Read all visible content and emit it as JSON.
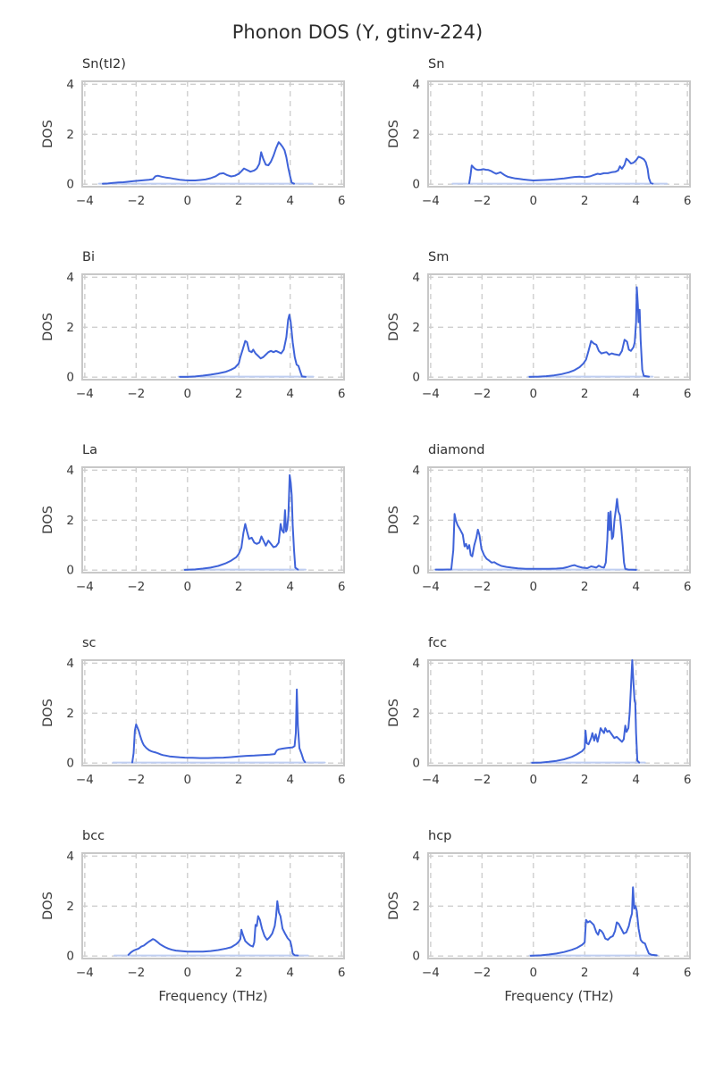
{
  "figure": {
    "title": "Phonon DOS (Y, gtinv-224)"
  },
  "style": {
    "line_color": "#3F63D9",
    "tail_color": "#BFCEF1",
    "grid_color": "#CFCFCF",
    "border_color": "#C8C8C8",
    "text_color": "#3A3A3A",
    "title_color": "#2B2B2B"
  },
  "axes": {
    "xlabel": "Frequency (THz)",
    "ylabel": "DOS",
    "xlim": [
      -4.1,
      6.1
    ],
    "ylim": [
      -0.1,
      4.12
    ],
    "xticks": [
      -4,
      -2,
      0,
      2,
      4,
      6
    ],
    "yticks": [
      0,
      2,
      4
    ],
    "grid": "dashed"
  },
  "chart_data": [
    {
      "type": "line",
      "title": "Sn(tI2)",
      "xlabel": "",
      "ylabel": "DOS",
      "xlim": [
        -4.1,
        6.1
      ],
      "ylim": [
        -0.1,
        4.12
      ],
      "xticks": [
        -4,
        -2,
        0,
        2,
        4,
        6
      ],
      "yticks": [
        0,
        2,
        4
      ],
      "tail": [
        -3.45,
        4.85
      ],
      "x": [
        -3.3,
        -3.1,
        -2.9,
        -2.7,
        -2.5,
        -2.3,
        -2.1,
        -1.9,
        -1.7,
        -1.5,
        -1.35,
        -1.25,
        -1.15,
        -1.0,
        -0.85,
        -0.7,
        -0.5,
        -0.3,
        -0.1,
        0.1,
        0.3,
        0.5,
        0.7,
        0.9,
        1.1,
        1.25,
        1.4,
        1.55,
        1.7,
        1.85,
        2.0,
        2.1,
        2.2,
        2.3,
        2.45,
        2.6,
        2.7,
        2.8,
        2.87,
        2.95,
        3.05,
        3.15,
        3.25,
        3.35,
        3.45,
        3.55,
        3.63,
        3.7,
        3.78,
        3.85,
        3.92,
        4.0,
        4.06,
        4.15
      ],
      "y": [
        0.02,
        0.03,
        0.05,
        0.07,
        0.08,
        0.1,
        0.12,
        0.14,
        0.16,
        0.18,
        0.2,
        0.32,
        0.34,
        0.3,
        0.27,
        0.25,
        0.21,
        0.18,
        0.16,
        0.15,
        0.15,
        0.17,
        0.19,
        0.24,
        0.32,
        0.42,
        0.44,
        0.36,
        0.31,
        0.34,
        0.42,
        0.52,
        0.63,
        0.58,
        0.5,
        0.55,
        0.63,
        0.82,
        1.28,
        1.02,
        0.78,
        0.76,
        0.9,
        1.14,
        1.44,
        1.68,
        1.6,
        1.5,
        1.36,
        1.08,
        0.68,
        0.3,
        0.06,
        0.02
      ]
    },
    {
      "type": "line",
      "title": "Sn",
      "xlabel": "",
      "ylabel": "DOS",
      "xlim": [
        -4.1,
        6.1
      ],
      "ylim": [
        -0.1,
        4.12
      ],
      "xticks": [
        -4,
        -2,
        0,
        2,
        4,
        6
      ],
      "yticks": [
        0,
        2,
        4
      ],
      "tail": [
        -3.15,
        5.2
      ],
      "x": [
        -2.5,
        -2.45,
        -2.4,
        -2.32,
        -2.25,
        -2.15,
        -2.05,
        -1.95,
        -1.85,
        -1.75,
        -1.65,
        -1.55,
        -1.45,
        -1.35,
        -1.28,
        -1.2,
        -1.1,
        -1.0,
        -0.85,
        -0.7,
        -0.55,
        -0.4,
        -0.2,
        0.0,
        0.2,
        0.4,
        0.6,
        0.8,
        1.0,
        1.2,
        1.4,
        1.6,
        1.8,
        2.0,
        2.2,
        2.35,
        2.5,
        2.6,
        2.75,
        2.9,
        3.05,
        3.2,
        3.3,
        3.37,
        3.45,
        3.55,
        3.62,
        3.7,
        3.8,
        3.9,
        4.0,
        4.1,
        4.2,
        4.3,
        4.38,
        4.45,
        4.5,
        4.57,
        4.65
      ],
      "y": [
        0.04,
        0.35,
        0.75,
        0.66,
        0.6,
        0.57,
        0.58,
        0.6,
        0.58,
        0.57,
        0.53,
        0.47,
        0.42,
        0.45,
        0.48,
        0.42,
        0.35,
        0.3,
        0.26,
        0.23,
        0.21,
        0.19,
        0.17,
        0.15,
        0.16,
        0.17,
        0.18,
        0.19,
        0.21,
        0.23,
        0.26,
        0.29,
        0.3,
        0.28,
        0.31,
        0.37,
        0.42,
        0.4,
        0.44,
        0.44,
        0.48,
        0.5,
        0.55,
        0.72,
        0.62,
        0.78,
        1.02,
        0.95,
        0.83,
        0.86,
        0.96,
        1.1,
        1.06,
        1.0,
        0.88,
        0.62,
        0.25,
        0.05,
        0.02
      ]
    },
    {
      "type": "line",
      "title": "Bi",
      "xlabel": "",
      "ylabel": "DOS",
      "xlim": [
        -4.1,
        6.1
      ],
      "ylim": [
        -0.1,
        4.12
      ],
      "xticks": [
        -4,
        -2,
        0,
        2,
        4,
        6
      ],
      "yticks": [
        0,
        2,
        4
      ],
      "tail": [
        -0.35,
        4.9
      ],
      "x": [
        -0.3,
        0.0,
        0.3,
        0.6,
        0.9,
        1.2,
        1.5,
        1.7,
        1.85,
        2.0,
        2.06,
        2.15,
        2.25,
        2.32,
        2.4,
        2.5,
        2.56,
        2.65,
        2.75,
        2.85,
        2.95,
        3.05,
        3.15,
        3.25,
        3.35,
        3.45,
        3.55,
        3.65,
        3.75,
        3.85,
        3.92,
        3.97,
        4.02,
        4.1,
        4.18,
        4.25,
        4.32,
        4.4,
        4.46,
        4.6
      ],
      "y": [
        0.01,
        0.01,
        0.03,
        0.06,
        0.1,
        0.15,
        0.22,
        0.3,
        0.38,
        0.55,
        0.8,
        1.1,
        1.45,
        1.4,
        1.05,
        1.0,
        1.1,
        0.95,
        0.85,
        0.75,
        0.8,
        0.9,
        1.0,
        1.05,
        1.0,
        1.05,
        1.0,
        0.95,
        1.1,
        1.6,
        2.3,
        2.5,
        2.2,
        1.4,
        0.8,
        0.5,
        0.45,
        0.2,
        0.03,
        0.01
      ]
    },
    {
      "type": "line",
      "title": "Sm",
      "xlabel": "",
      "ylabel": "DOS",
      "xlim": [
        -4.1,
        6.1
      ],
      "ylim": [
        -0.1,
        4.12
      ],
      "xticks": [
        -4,
        -2,
        0,
        2,
        4,
        6
      ],
      "yticks": [
        0,
        2,
        4
      ],
      "tail": [
        -0.2,
        4.65
      ],
      "x": [
        -0.15,
        0.2,
        0.5,
        0.8,
        1.1,
        1.4,
        1.6,
        1.8,
        1.95,
        2.05,
        2.15,
        2.25,
        2.35,
        2.45,
        2.55,
        2.65,
        2.75,
        2.85,
        2.95,
        3.05,
        3.15,
        3.25,
        3.35,
        3.45,
        3.55,
        3.65,
        3.72,
        3.8,
        3.9,
        3.95,
        4.0,
        4.03,
        4.07,
        4.1,
        4.14,
        4.18,
        4.24,
        4.3,
        4.5
      ],
      "y": [
        0.01,
        0.02,
        0.04,
        0.07,
        0.12,
        0.2,
        0.28,
        0.4,
        0.55,
        0.7,
        1.05,
        1.45,
        1.35,
        1.3,
        1.05,
        0.95,
        0.98,
        1.0,
        0.9,
        0.95,
        0.92,
        0.9,
        0.88,
        1.05,
        1.5,
        1.42,
        1.1,
        1.05,
        1.2,
        1.4,
        2.2,
        3.6,
        2.9,
        2.2,
        2.7,
        1.5,
        0.3,
        0.05,
        0.02
      ]
    },
    {
      "type": "line",
      "title": "La",
      "xlabel": "",
      "ylabel": "DOS",
      "xlim": [
        -4.1,
        6.1
      ],
      "ylim": [
        -0.1,
        4.12
      ],
      "xticks": [
        -4,
        -2,
        0,
        2,
        4,
        6
      ],
      "yticks": [
        0,
        2,
        4
      ],
      "tail": [
        -0.15,
        4.6
      ],
      "x": [
        -0.1,
        0.3,
        0.6,
        0.9,
        1.2,
        1.5,
        1.7,
        1.9,
        2.0,
        2.1,
        2.18,
        2.25,
        2.32,
        2.4,
        2.5,
        2.6,
        2.7,
        2.8,
        2.88,
        2.95,
        3.05,
        3.15,
        3.25,
        3.35,
        3.45,
        3.55,
        3.63,
        3.68,
        3.75,
        3.8,
        3.84,
        3.88,
        3.93,
        3.98,
        4.02,
        4.06,
        4.1,
        4.15,
        4.2,
        4.3
      ],
      "y": [
        0.01,
        0.03,
        0.06,
        0.1,
        0.17,
        0.28,
        0.38,
        0.52,
        0.65,
        0.9,
        1.5,
        1.85,
        1.55,
        1.25,
        1.3,
        1.1,
        1.05,
        1.1,
        1.35,
        1.2,
        0.98,
        1.18,
        1.05,
        0.92,
        0.95,
        1.1,
        1.85,
        1.6,
        1.5,
        2.4,
        1.55,
        1.65,
        2.2,
        3.8,
        3.5,
        3.0,
        1.8,
        0.8,
        0.1,
        0.02
      ]
    },
    {
      "type": "line",
      "title": "diamond",
      "xlabel": "",
      "ylabel": "DOS",
      "xlim": [
        -4.1,
        6.1
      ],
      "ylim": [
        -0.1,
        4.12
      ],
      "xticks": [
        -4,
        -2,
        0,
        2,
        4,
        6
      ],
      "yticks": [
        0,
        2,
        4
      ],
      "tail": [
        -3.85,
        4.05
      ],
      "x": [
        -3.8,
        -3.5,
        -3.2,
        -3.12,
        -3.07,
        -3.02,
        -2.95,
        -2.85,
        -2.75,
        -2.68,
        -2.62,
        -2.56,
        -2.5,
        -2.44,
        -2.38,
        -2.3,
        -2.22,
        -2.16,
        -2.1,
        -2.02,
        -1.92,
        -1.82,
        -1.72,
        -1.62,
        -1.52,
        -1.42,
        -1.25,
        -1.05,
        -0.85,
        -0.6,
        -0.3,
        0.0,
        0.3,
        0.6,
        0.9,
        1.15,
        1.35,
        1.5,
        1.6,
        1.72,
        1.9,
        2.1,
        2.25,
        2.35,
        2.45,
        2.55,
        2.65,
        2.75,
        2.82,
        2.88,
        2.92,
        2.97,
        3.01,
        3.06,
        3.11,
        3.16,
        3.21,
        3.26,
        3.31,
        3.37,
        3.43,
        3.48,
        3.53,
        3.58,
        3.7,
        4.0
      ],
      "y": [
        0.02,
        0.02,
        0.03,
        0.8,
        2.25,
        2.0,
        1.8,
        1.62,
        1.42,
        0.95,
        1.05,
        0.85,
        1.0,
        0.6,
        0.55,
        1.0,
        1.3,
        1.62,
        1.4,
        0.85,
        0.6,
        0.45,
        0.38,
        0.3,
        0.32,
        0.25,
        0.17,
        0.13,
        0.1,
        0.07,
        0.05,
        0.05,
        0.05,
        0.05,
        0.06,
        0.08,
        0.13,
        0.18,
        0.2,
        0.15,
        0.1,
        0.08,
        0.15,
        0.13,
        0.1,
        0.18,
        0.12,
        0.1,
        0.3,
        1.2,
        2.3,
        1.6,
        2.35,
        1.25,
        1.35,
        2.0,
        2.4,
        2.85,
        2.35,
        2.2,
        1.6,
        1.0,
        0.3,
        0.05,
        0.02,
        0.01
      ]
    },
    {
      "type": "line",
      "title": "sc",
      "xlabel": "",
      "ylabel": "DOS",
      "xlim": [
        -4.1,
        6.1
      ],
      "ylim": [
        -0.1,
        4.12
      ],
      "xticks": [
        -4,
        -2,
        0,
        2,
        4,
        6
      ],
      "yticks": [
        0,
        2,
        4
      ],
      "tail": [
        -2.9,
        5.35
      ],
      "x": [
        -2.15,
        -2.1,
        -2.05,
        -2.0,
        -1.95,
        -1.9,
        -1.85,
        -1.8,
        -1.75,
        -1.7,
        -1.6,
        -1.5,
        -1.4,
        -1.3,
        -1.22,
        -1.12,
        -1.05,
        -0.95,
        -0.85,
        -0.7,
        -0.5,
        -0.3,
        -0.1,
        0.2,
        0.5,
        0.8,
        1.1,
        1.4,
        1.7,
        2.0,
        2.3,
        2.6,
        2.9,
        3.2,
        3.4,
        3.47,
        3.55,
        3.7,
        3.85,
        4.0,
        4.1,
        4.17,
        4.22,
        4.26,
        4.3,
        4.36,
        4.45,
        4.52,
        4.58
      ],
      "y": [
        0.03,
        0.4,
        1.3,
        1.55,
        1.42,
        1.3,
        1.12,
        0.95,
        0.82,
        0.72,
        0.6,
        0.52,
        0.47,
        0.44,
        0.42,
        0.38,
        0.35,
        0.32,
        0.3,
        0.27,
        0.25,
        0.23,
        0.22,
        0.21,
        0.2,
        0.2,
        0.21,
        0.22,
        0.24,
        0.27,
        0.29,
        0.3,
        0.32,
        0.34,
        0.36,
        0.5,
        0.55,
        0.58,
        0.6,
        0.62,
        0.63,
        0.68,
        1.2,
        2.95,
        1.5,
        0.6,
        0.35,
        0.12,
        0.04
      ]
    },
    {
      "type": "line",
      "title": "fcc",
      "xlabel": "",
      "ylabel": "DOS",
      "xlim": [
        -4.1,
        6.1
      ],
      "ylim": [
        -0.1,
        4.12
      ],
      "xticks": [
        -4,
        -2,
        0,
        2,
        4,
        6
      ],
      "yticks": [
        0,
        2,
        4
      ],
      "tail": [
        -0.1,
        4.35
      ],
      "x": [
        -0.05,
        0.3,
        0.6,
        0.9,
        1.2,
        1.5,
        1.7,
        1.9,
        2.0,
        2.03,
        2.08,
        2.15,
        2.25,
        2.3,
        2.37,
        2.43,
        2.5,
        2.56,
        2.62,
        2.68,
        2.75,
        2.8,
        2.88,
        2.95,
        3.05,
        3.15,
        3.25,
        3.35,
        3.45,
        3.52,
        3.58,
        3.63,
        3.7,
        3.75,
        3.8,
        3.85,
        3.9,
        3.94,
        3.97,
        4.0,
        4.05,
        4.12
      ],
      "y": [
        0.01,
        0.02,
        0.05,
        0.09,
        0.15,
        0.25,
        0.35,
        0.48,
        0.6,
        1.3,
        0.8,
        0.75,
        1.0,
        1.2,
        0.9,
        1.15,
        0.85,
        1.1,
        1.4,
        1.3,
        1.2,
        1.4,
        1.25,
        1.3,
        1.15,
        1.0,
        1.05,
        0.95,
        0.85,
        0.95,
        1.5,
        1.25,
        1.4,
        2.0,
        3.0,
        4.15,
        3.2,
        2.5,
        2.4,
        1.2,
        0.1,
        0.02
      ]
    },
    {
      "type": "line",
      "title": "bcc",
      "xlabel": "Frequency (THz)",
      "ylabel": "DOS",
      "xlim": [
        -4.1,
        6.1
      ],
      "ylim": [
        -0.1,
        4.12
      ],
      "xticks": [
        -4,
        -2,
        0,
        2,
        4,
        6
      ],
      "yticks": [
        0,
        2,
        4
      ],
      "tail": [
        -2.85,
        4.7
      ],
      "x": [
        -2.3,
        -2.2,
        -2.1,
        -2.0,
        -1.9,
        -1.8,
        -1.7,
        -1.6,
        -1.5,
        -1.42,
        -1.35,
        -1.28,
        -1.18,
        -1.08,
        -0.98,
        -0.88,
        -0.75,
        -0.6,
        -0.45,
        -0.25,
        0.0,
        0.3,
        0.6,
        0.9,
        1.2,
        1.5,
        1.7,
        1.9,
        2.0,
        2.06,
        2.1,
        2.16,
        2.25,
        2.35,
        2.45,
        2.55,
        2.6,
        2.65,
        2.7,
        2.75,
        2.82,
        2.9,
        3.0,
        3.1,
        3.2,
        3.3,
        3.4,
        3.45,
        3.5,
        3.56,
        3.62,
        3.7,
        3.8,
        3.9,
        4.0,
        4.05,
        4.1,
        4.18,
        4.3
      ],
      "y": [
        0.05,
        0.15,
        0.22,
        0.26,
        0.3,
        0.38,
        0.42,
        0.5,
        0.58,
        0.63,
        0.68,
        0.65,
        0.57,
        0.48,
        0.42,
        0.36,
        0.3,
        0.25,
        0.22,
        0.2,
        0.18,
        0.18,
        0.18,
        0.2,
        0.24,
        0.3,
        0.35,
        0.48,
        0.58,
        0.68,
        1.05,
        0.85,
        0.6,
        0.5,
        0.42,
        0.38,
        0.55,
        1.25,
        1.2,
        1.6,
        1.45,
        1.1,
        0.8,
        0.65,
        0.75,
        0.9,
        1.2,
        1.6,
        2.2,
        1.75,
        1.6,
        1.1,
        0.9,
        0.72,
        0.6,
        0.4,
        0.1,
        0.03,
        0.02
      ]
    },
    {
      "type": "line",
      "title": "hcp",
      "xlabel": "Frequency (THz)",
      "ylabel": "DOS",
      "xlim": [
        -4.1,
        6.1
      ],
      "ylim": [
        -0.1,
        4.12
      ],
      "xticks": [
        -4,
        -2,
        0,
        2,
        4,
        6
      ],
      "yticks": [
        0,
        2,
        4
      ],
      "tail": [
        -0.15,
        4.85
      ],
      "x": [
        -0.1,
        0.3,
        0.6,
        0.9,
        1.2,
        1.5,
        1.7,
        1.9,
        2.0,
        2.05,
        2.12,
        2.2,
        2.28,
        2.35,
        2.45,
        2.52,
        2.58,
        2.65,
        2.72,
        2.8,
        2.9,
        3.0,
        3.1,
        3.18,
        3.25,
        3.32,
        3.42,
        3.52,
        3.62,
        3.72,
        3.78,
        3.84,
        3.88,
        3.93,
        3.98,
        4.03,
        4.1,
        4.18,
        4.25,
        4.35,
        4.42,
        4.5,
        4.6,
        4.8
      ],
      "y": [
        0.01,
        0.03,
        0.06,
        0.1,
        0.16,
        0.25,
        0.33,
        0.45,
        0.55,
        1.45,
        1.35,
        1.4,
        1.32,
        1.25,
        0.95,
        0.85,
        1.05,
        1.0,
        0.9,
        0.7,
        0.65,
        0.75,
        0.8,
        1.0,
        1.35,
        1.3,
        1.1,
        0.9,
        0.95,
        1.2,
        1.5,
        1.7,
        2.75,
        1.9,
        2.0,
        1.8,
        1.1,
        0.65,
        0.55,
        0.5,
        0.3,
        0.1,
        0.05,
        0.03
      ]
    }
  ]
}
